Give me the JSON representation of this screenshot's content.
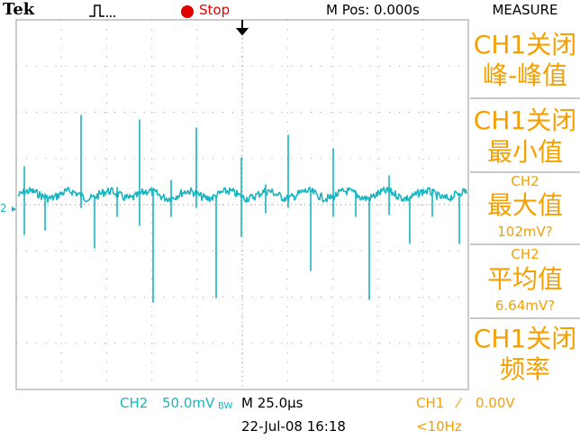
{
  "header": {
    "brand": "Tek",
    "status": "Stop",
    "position": "M Pos: 0.000s"
  },
  "menu": {
    "title": "MEASURE",
    "items": [
      {
        "lines": [
          "CH1关闭",
          "峰-峰值"
        ]
      },
      {
        "lines": [
          "CH1关闭",
          "最小值"
        ]
      },
      {
        "lines": [
          "CH2",
          "最大值",
          "102mV?"
        ]
      },
      {
        "lines": [
          "CH2",
          "平均值",
          "6.64mV?"
        ]
      },
      {
        "lines": [
          "CH1关闭",
          "频率"
        ]
      }
    ]
  },
  "channel_marker": "2",
  "footer": {
    "channel": "CH2",
    "scale": "50.0mV",
    "bandwidth": "BW",
    "timebase": "M 25.0µs",
    "trigger_source": "CH1",
    "trigger_slope": "⁄",
    "trigger_level": "0.00V",
    "datetime": "22-Jul-08 16:18",
    "trigger_frequency": "<10Hz"
  }
}
